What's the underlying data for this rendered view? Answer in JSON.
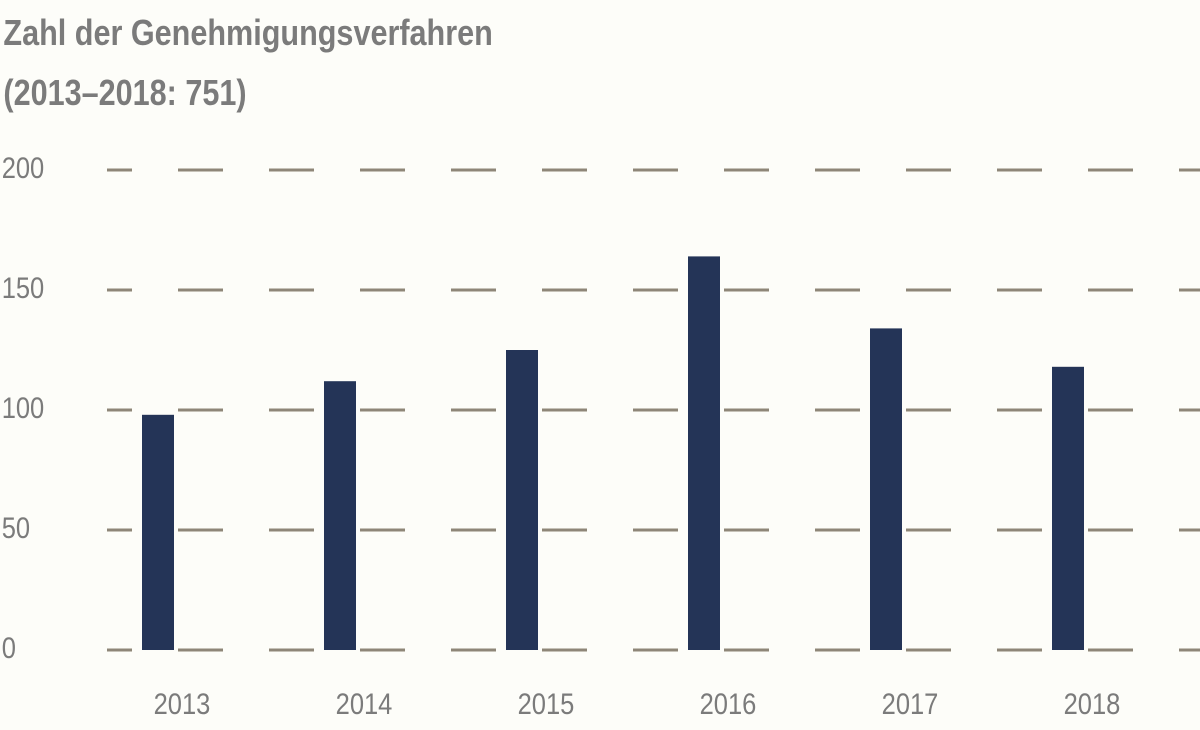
{
  "chart_data": {
    "type": "bar",
    "title": "Zahl der Genehmigungsverfahren",
    "subtitle": "(2013–2018: 751)",
    "categories": [
      "2013",
      "2014",
      "2015",
      "2016",
      "2017",
      "2018"
    ],
    "values": [
      98,
      112,
      125,
      164,
      134,
      118
    ],
    "color": "#243457",
    "ylim": [
      0,
      200
    ],
    "yticks": [
      0,
      50,
      100,
      150,
      200
    ],
    "grid": true
  }
}
